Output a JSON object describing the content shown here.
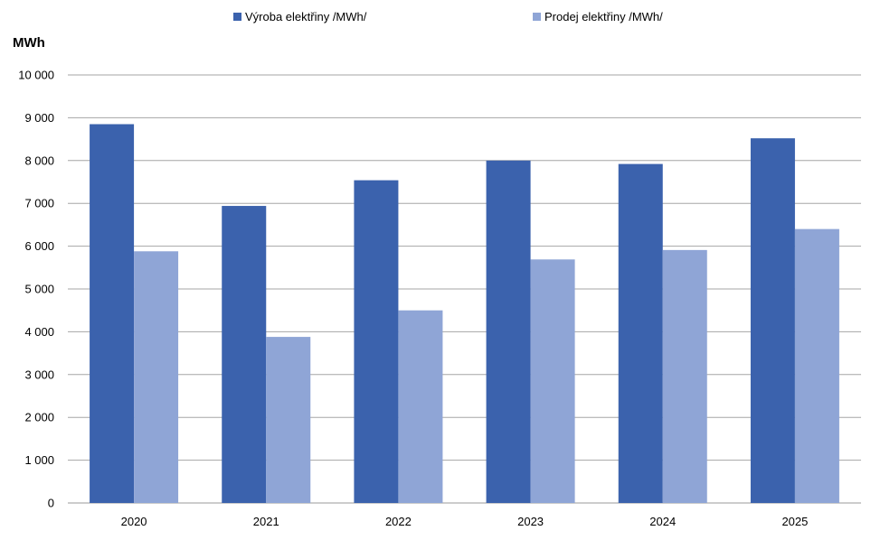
{
  "chart_data": {
    "type": "bar",
    "unit_label": "MWh",
    "categories": [
      "2020",
      "2021",
      "2022",
      "2023",
      "2024",
      "2025"
    ],
    "series": [
      {
        "name": "Výroba elektřiny /MWh/",
        "color": "#3b62ad",
        "values": [
          8850,
          6940,
          7540,
          8000,
          7920,
          8520
        ]
      },
      {
        "name": "Prodej elektřiny /MWh/",
        "color": "#8fa5d6",
        "values": [
          5880,
          3880,
          4500,
          5690,
          5910,
          6400
        ]
      }
    ],
    "ylim": [
      0,
      10000
    ],
    "yticks": [
      0,
      1000,
      2000,
      3000,
      4000,
      5000,
      6000,
      7000,
      8000,
      9000,
      10000
    ],
    "ytick_labels": [
      "0",
      "1 000",
      "2 000",
      "3 000",
      "4 000",
      "5 000",
      "6 000",
      "7 000",
      "8 000",
      "9 000",
      "10 000"
    ],
    "grid": true,
    "legend_position": "top"
  }
}
